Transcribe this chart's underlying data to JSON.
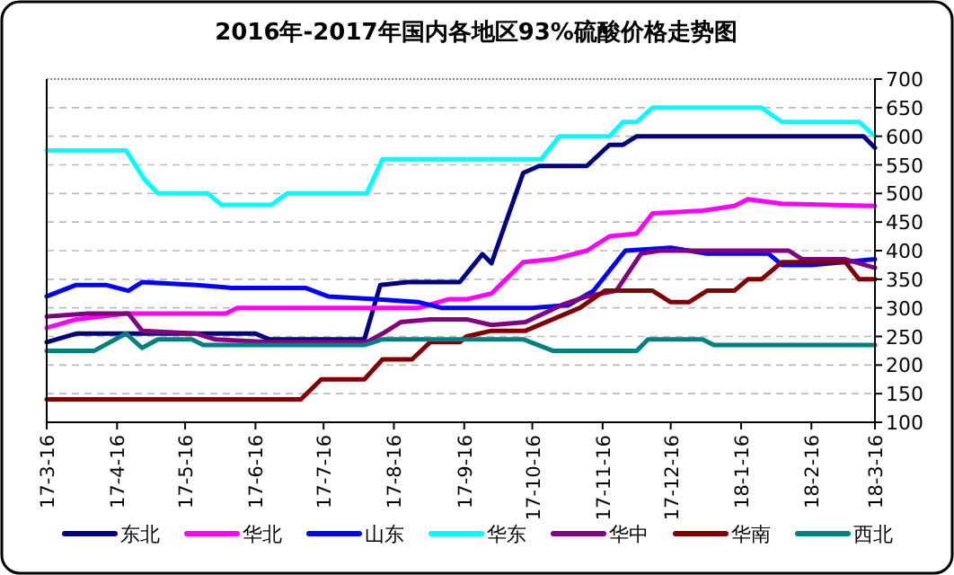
{
  "chart_data": {
    "type": "line",
    "title": "2016年-2017年国内各地区93%硫酸价格走势图",
    "xlim": [
      "2017-03-16",
      "2018-03-16"
    ],
    "xticks": [
      {
        "value": "2017-03-16",
        "label": "17-3-16"
      },
      {
        "value": "2017-04-16",
        "label": "17-4-16"
      },
      {
        "value": "2017-05-16",
        "label": "17-5-16"
      },
      {
        "value": "2017-06-16",
        "label": "17-6-16"
      },
      {
        "value": "2017-07-16",
        "label": "17-7-16"
      },
      {
        "value": "2017-08-16",
        "label": "17-8-16"
      },
      {
        "value": "2017-09-16",
        "label": "17-9-16"
      },
      {
        "value": "2017-10-16",
        "label": "17-10-16"
      },
      {
        "value": "2017-11-16",
        "label": "17-11-16"
      },
      {
        "value": "2017-12-16",
        "label": "17-12-16"
      },
      {
        "value": "2018-01-16",
        "label": "18-1-16"
      },
      {
        "value": "2018-02-16",
        "label": "18-2-16"
      },
      {
        "value": "2018-03-16",
        "label": "18-3-16"
      }
    ],
    "ylim": [
      100,
      700
    ],
    "yticks": [
      100,
      150,
      200,
      250,
      300,
      350,
      400,
      450,
      500,
      550,
      600,
      650,
      700
    ],
    "grid": "y",
    "legend": "bottom",
    "marker": "none",
    "line_style": "solid",
    "series": [
      {
        "name": "东北",
        "color": "#000080",
        "x": [
          "2017-03-16",
          "2017-03-29",
          "2017-06-16",
          "2017-06-22",
          "2017-08-03",
          "2017-08-10",
          "2017-08-22",
          "2017-09-14",
          "2017-09-24",
          "2017-09-28",
          "2017-10-12",
          "2017-10-19",
          "2017-11-09",
          "2017-11-19",
          "2017-11-25",
          "2017-12-01",
          "2018-03-11",
          "2018-03-16"
        ],
        "values": [
          240,
          255,
          255,
          245,
          245,
          340,
          345,
          345,
          394,
          378,
          536,
          548,
          548,
          585,
          585,
          600,
          600,
          580
        ]
      },
      {
        "name": "华北",
        "color": "#ff00ff",
        "x": [
          "2017-03-16",
          "2017-03-29",
          "2017-04-20",
          "2017-06-03",
          "2017-06-08",
          "2017-08-27",
          "2017-09-09",
          "2017-09-17",
          "2017-09-28",
          "2017-10-12",
          "2017-10-25",
          "2017-11-09",
          "2017-11-19",
          "2017-12-01",
          "2017-12-08",
          "2017-12-30",
          "2018-01-13",
          "2018-01-19",
          "2018-02-03",
          "2018-03-16"
        ],
        "values": [
          265,
          280,
          290,
          290,
          300,
          300,
          315,
          315,
          325,
          380,
          385,
          400,
          425,
          430,
          465,
          470,
          478,
          490,
          482,
          478
        ]
      },
      {
        "name": "山东",
        "color": "#0000ff",
        "x": [
          "2017-03-16",
          "2017-03-29",
          "2017-04-11",
          "2017-04-21",
          "2017-04-27",
          "2017-05-21",
          "2017-06-05",
          "2017-07-08",
          "2017-07-18",
          "2017-08-08",
          "2017-08-27",
          "2017-09-06",
          "2017-10-16",
          "2017-11-01",
          "2017-11-12",
          "2017-11-26",
          "2017-12-16",
          "2018-01-01",
          "2018-01-28",
          "2018-02-03",
          "2018-02-16",
          "2018-03-16"
        ],
        "values": [
          320,
          340,
          340,
          330,
          345,
          340,
          335,
          335,
          320,
          315,
          310,
          300,
          300,
          305,
          330,
          400,
          405,
          395,
          395,
          375,
          375,
          385
        ]
      },
      {
        "name": "华东",
        "color": "#00ffff",
        "x": [
          "2017-03-16",
          "2017-04-20",
          "2017-04-28",
          "2017-05-04",
          "2017-05-26",
          "2017-06-01",
          "2017-06-23",
          "2017-06-30",
          "2017-08-04",
          "2017-08-11",
          "2017-10-20",
          "2017-10-28",
          "2017-11-19",
          "2017-11-25",
          "2017-12-01",
          "2017-12-08",
          "2018-01-25",
          "2018-02-03",
          "2018-03-09",
          "2018-03-16"
        ],
        "values": [
          575,
          575,
          525,
          500,
          500,
          480,
          480,
          500,
          500,
          560,
          560,
          600,
          600,
          625,
          625,
          650,
          650,
          625,
          625,
          600
        ]
      },
      {
        "name": "华中",
        "color": "#800080",
        "x": [
          "2017-03-16",
          "2017-04-03",
          "2017-04-21",
          "2017-04-27",
          "2017-05-21",
          "2017-05-29",
          "2017-06-22",
          "2017-08-04",
          "2017-08-11",
          "2017-08-19",
          "2017-09-01",
          "2017-09-17",
          "2017-09-28",
          "2017-10-13",
          "2017-10-29",
          "2017-11-09",
          "2017-11-22",
          "2017-12-03",
          "2017-12-11",
          "2018-02-06",
          "2018-02-12",
          "2018-03-03",
          "2018-03-16"
        ],
        "values": [
          285,
          290,
          290,
          260,
          255,
          245,
          240,
          240,
          255,
          275,
          280,
          280,
          270,
          275,
          305,
          320,
          330,
          395,
          400,
          400,
          385,
          385,
          370
        ]
      },
      {
        "name": "华南",
        "color": "#800000",
        "x": [
          "2017-03-16",
          "2017-07-06",
          "2017-07-15",
          "2017-08-03",
          "2017-08-11",
          "2017-08-24",
          "2017-09-01",
          "2017-09-14",
          "2017-09-17",
          "2017-09-28",
          "2017-10-13",
          "2017-11-06",
          "2017-11-17",
          "2017-12-08",
          "2017-12-16",
          "2017-12-24",
          "2018-01-01",
          "2018-01-13",
          "2018-01-19",
          "2018-01-25",
          "2018-02-03",
          "2018-03-03",
          "2018-03-09",
          "2018-03-16"
        ],
        "values": [
          140,
          140,
          175,
          175,
          210,
          210,
          240,
          240,
          250,
          260,
          260,
          300,
          330,
          330,
          310,
          310,
          330,
          330,
          350,
          350,
          380,
          380,
          350,
          350
        ]
      },
      {
        "name": "西北",
        "color": "#008080",
        "x": [
          "2017-03-16",
          "2017-04-06",
          "2017-04-20",
          "2017-04-27",
          "2017-05-04",
          "2017-05-19",
          "2017-05-24",
          "2017-08-03",
          "2017-08-11",
          "2017-10-12",
          "2017-10-25",
          "2017-12-01",
          "2017-12-06",
          "2017-12-30",
          "2018-01-04",
          "2018-03-16"
        ],
        "values": [
          225,
          225,
          255,
          230,
          245,
          245,
          235,
          235,
          245,
          245,
          225,
          225,
          245,
          245,
          235,
          235
        ]
      }
    ]
  }
}
